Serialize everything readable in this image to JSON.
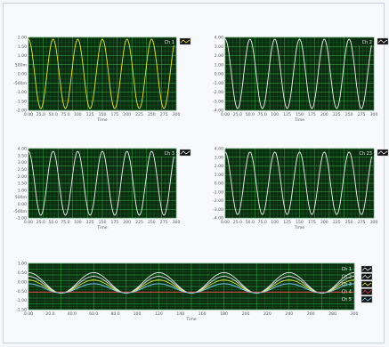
{
  "chart_data": [
    {
      "type": "line",
      "xlabel": "Time",
      "ylabel": "",
      "xlim": [
        0,
        300
      ],
      "ylim": [
        -2.0,
        2.0
      ],
      "xticks": [
        "0.00",
        "25.0",
        "50.0",
        "75.0",
        "100",
        "125",
        "150",
        "175",
        "200",
        "225",
        "250",
        "275",
        "300"
      ],
      "yticks": [
        "2.00",
        "1.50",
        "1.00",
        "500m",
        "0.00",
        "-500m",
        "-1.00",
        "-1.50",
        "-2.00"
      ],
      "yticks_values": [
        2.0,
        1.5,
        1.0,
        0.5,
        0.0,
        -0.5,
        -1.0,
        -1.5,
        -2.0
      ],
      "grid": true,
      "legend": "top-right",
      "series": [
        {
          "name": "Ch 1",
          "color": "#e6e63a",
          "amplitude": 1.9,
          "offset": 0.0,
          "period": 50,
          "phase": 0
        }
      ]
    },
    {
      "type": "line",
      "xlabel": "Time",
      "ylabel": "",
      "xlim": [
        0,
        300
      ],
      "ylim": [
        -4.0,
        4.0
      ],
      "xticks": [
        "0.00",
        "25.0",
        "50.0",
        "75.0",
        "100",
        "125",
        "150",
        "175",
        "200",
        "225",
        "250",
        "275",
        "300"
      ],
      "yticks": [
        "4.00",
        "3.00",
        "2.00",
        "1.00",
        "0.00",
        "-1.00",
        "-2.00",
        "-3.00",
        "-4.00"
      ],
      "yticks_values": [
        4,
        3,
        2,
        1,
        0,
        -1,
        -2,
        -3,
        -4
      ],
      "grid": true,
      "legend": "top-right",
      "series": [
        {
          "name": "Ch 2",
          "color": "#f2f2f2",
          "amplitude": 3.8,
          "offset": 0.0,
          "period": 50,
          "phase": 0
        }
      ]
    },
    {
      "type": "line",
      "xlabel": "Time",
      "ylabel": "",
      "xlim": [
        0,
        300
      ],
      "ylim": [
        -1.0,
        4.0
      ],
      "xticks": [
        "0.00",
        "25.0",
        "50.0",
        "75.0",
        "100",
        "125",
        "150",
        "175",
        "200",
        "225",
        "250",
        "275",
        "300"
      ],
      "yticks": [
        "4.00",
        "3.50",
        "3.00",
        "2.50",
        "2.00",
        "1.50",
        "1.00",
        "500m",
        "0.00",
        "-500m",
        "-1.00"
      ],
      "yticks_values": [
        4,
        3.5,
        3,
        2.5,
        2,
        1.5,
        1,
        0.5,
        0,
        -0.5,
        -1
      ],
      "grid": true,
      "legend": "top-right",
      "series": [
        {
          "name": "Ch 3",
          "color": "#f2f2f2",
          "amplitude": 2.3,
          "offset": 1.5,
          "period": 50,
          "phase": 0
        }
      ]
    },
    {
      "type": "line",
      "xlabel": "Time",
      "ylabel": "",
      "xlim": [
        0,
        300
      ],
      "ylim": [
        -4.0,
        4.0
      ],
      "xticks": [
        "0.00",
        "25.0",
        "50.0",
        "75.0",
        "100",
        "125",
        "150",
        "175",
        "200",
        "225",
        "250",
        "275",
        "300"
      ],
      "yticks": [
        "4.00",
        "3.00",
        "2.00",
        "1.00",
        "0.00",
        "-1.00",
        "-2.00",
        "-3.00",
        "-4.00"
      ],
      "yticks_values": [
        4,
        3,
        2,
        1,
        0,
        -1,
        -2,
        -3,
        -4
      ],
      "grid": true,
      "legend": "top-right",
      "series": [
        {
          "name": "Ch 23",
          "color": "#f2f2f2",
          "amplitude": 3.6,
          "offset": 0.0,
          "period": 50,
          "phase": 0
        }
      ]
    },
    {
      "type": "line",
      "xlabel": "Time",
      "ylabel": "",
      "xlim": [
        0,
        300
      ],
      "ylim": [
        -1.5,
        1.0
      ],
      "xticks": [
        "0.00",
        "20.0",
        "40.0",
        "60.0",
        "80.0",
        "100",
        "120",
        "140",
        "160",
        "180",
        "200",
        "220",
        "240",
        "260",
        "280",
        "300"
      ],
      "yticks": [
        "1.00",
        "0.50",
        "0.00",
        "-0.50",
        "-1.00",
        "-1.50"
      ],
      "yticks_values": [
        1.0,
        0.5,
        0.0,
        -0.5,
        -1.0,
        -1.5
      ],
      "grid": true,
      "legend": "right",
      "series": [
        {
          "name": "Ch 1",
          "color": "#f2f2f2",
          "amplitude": 0.55,
          "offset": -0.05,
          "period": 60,
          "phase": 0
        },
        {
          "name": "Ch 2",
          "color": "#e8e8e8",
          "amplitude": 0.45,
          "offset": -0.15,
          "period": 60,
          "phase": 0
        },
        {
          "name": "Ch 3",
          "color": "#e6e63a",
          "amplitude": 0.35,
          "offset": -0.25,
          "period": 60,
          "phase": 0
        },
        {
          "name": "Ch 4",
          "color": "#d94040",
          "amplitude": 0.0,
          "offset": -0.55,
          "period": 60,
          "phase": 0
        },
        {
          "name": "Ch 5",
          "color": "#7fd4ff",
          "amplitude": 0.25,
          "offset": -0.35,
          "period": 60,
          "phase": 0
        }
      ]
    }
  ]
}
